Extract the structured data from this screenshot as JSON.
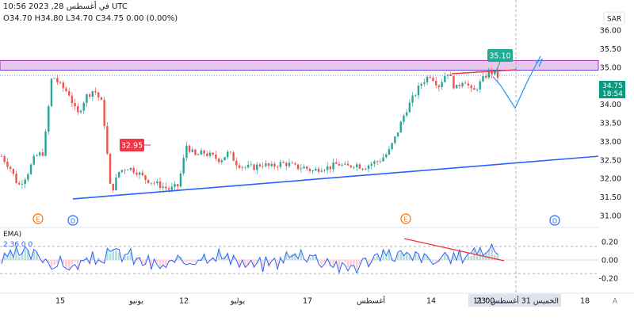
{
  "header": {
    "datetime": "10:56 2023 ,28 في أغسطس UTC",
    "ohlc_label": "O34.70 H34.80 L34.70 C34.75 0.00 (0.00%)",
    "currency_button": "SAR"
  },
  "price_scale": {
    "ticks": [
      "36.00",
      "35.50",
      "35.00",
      "34.50",
      "34.00",
      "33.50",
      "33.00",
      "32.50",
      "32.00",
      "31.50",
      "31.00"
    ],
    "last_price_tag": "34.75",
    "countdown_tag": "18:54",
    "last_price_color": "#089981"
  },
  "indicator": {
    "label": "EMA)",
    "value_line": "2.36  0  0",
    "ticks": [
      "0.20",
      "0.00",
      "-0.20"
    ]
  },
  "time_axis": {
    "labels": [
      "15",
      "يونيو",
      "12",
      "يوليو",
      "17",
      "أغسطس",
      "14",
      "18"
    ],
    "crosshair_label": "الخميس 31 أغسطس '23",
    "crosshair_time": "11:00"
  },
  "annotations": {
    "low_callout": "32.95",
    "high_callout": "35.10",
    "event_markers": [
      "E",
      "D",
      "E",
      "D"
    ],
    "auto_scale_button": "A"
  },
  "colors": {
    "up": "#26a69a",
    "down": "#ef5350",
    "trendline": "#2962ff",
    "resistance_zone": "#e1bee7",
    "resistance_border": "#9c27b0",
    "projection": "#2196f3"
  },
  "chart_data": {
    "type": "candlestick",
    "series": [
      {
        "name": "price",
        "note": "approximate path of closing prices, left to right",
        "values": [
          32.6,
          32.3,
          31.8,
          32.1,
          32.6,
          32.7,
          34.8,
          34.5,
          34.3,
          33.7,
          34.2,
          34.4,
          34.0,
          31.6,
          32.2,
          32.3,
          32.2,
          32.0,
          31.9,
          31.8,
          31.7,
          31.8,
          32.9,
          32.6,
          32.7,
          32.6,
          32.5,
          32.7,
          32.4,
          32.3,
          32.3,
          32.4,
          32.3,
          32.4,
          32.4,
          32.3,
          32.3,
          32.2,
          32.3,
          32.3,
          32.4,
          32.3,
          32.4,
          32.3,
          32.4,
          32.5,
          32.7,
          33.2,
          33.8,
          34.2,
          34.6,
          34.8,
          34.5,
          34.9,
          34.4,
          34.7,
          34.3,
          34.6,
          34.9,
          34.75
        ]
      }
    ],
    "projection_path": [
      34.75,
      34.5,
      34.2,
      33.9,
      34.6,
      35.3
    ],
    "price_range": [
      30.85,
      36.25
    ],
    "resistance_zone": [
      34.92,
      35.18
    ],
    "horizontal_levels": [
      34.92,
      34.78
    ],
    "trendline": {
      "start": 31.45,
      "end": 32.6
    },
    "indicator_series": {
      "name": "EMA",
      "range": [
        -0.28,
        0.28
      ],
      "levels": [
        0.15,
        -0.15
      ]
    }
  }
}
